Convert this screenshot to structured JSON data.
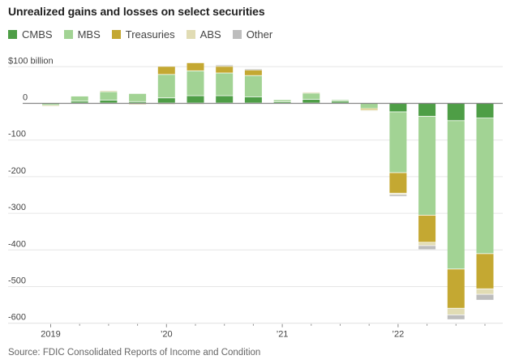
{
  "chart_data": {
    "type": "bar",
    "stacked": true,
    "title": "Unrealized gains and losses on select securities",
    "ylabel": "",
    "xlabel": "",
    "y_unit_label": "$100 billion",
    "ylim": [
      -600,
      100
    ],
    "yticks": [
      100,
      0,
      -100,
      -200,
      -300,
      -400,
      -500,
      -600
    ],
    "ytick_labels": [
      "$100 billion",
      "0",
      "-100",
      "-200",
      "-300",
      "-400",
      "-500",
      "-600"
    ],
    "x_tick_labels": [
      {
        "index": 0,
        "label": "2019"
      },
      {
        "index": 4,
        "label": "’20"
      },
      {
        "index": 8,
        "label": "’21"
      },
      {
        "index": 12,
        "label": "’22"
      }
    ],
    "categories": [
      "2019 Q1",
      "2019 Q2",
      "2019 Q3",
      "2019 Q4",
      "2020 Q1",
      "2020 Q2",
      "2020 Q3",
      "2020 Q4",
      "2021 Q1",
      "2021 Q2",
      "2021 Q3",
      "2021 Q4",
      "2022 Q1",
      "2022 Q2",
      "2022 Q3",
      "2022 Q4"
    ],
    "series": [
      {
        "name": "CMBS",
        "color": "#4e9e46",
        "values": [
          0,
          5,
          8,
          4,
          14,
          20,
          20,
          17,
          3,
          10,
          5,
          0,
          -24,
          -36,
          -48,
          -41
        ]
      },
      {
        "name": "MBS",
        "color": "#a2d394",
        "values": [
          -6,
          14,
          23,
          22,
          64,
          68,
          62,
          58,
          6,
          17,
          4,
          -15,
          -166,
          -270,
          -405,
          -370
        ]
      },
      {
        "name": "Treasuries",
        "color": "#c4a832",
        "values": [
          0,
          0,
          0,
          0,
          22,
          22,
          18,
          15,
          0,
          0,
          0,
          -3,
          -56,
          -74,
          -107,
          -96
        ]
      },
      {
        "name": "ABS",
        "color": "#e1dcb4",
        "values": [
          -3,
          0,
          3,
          -5,
          -4,
          -2,
          2,
          2,
          0,
          3,
          0,
          -1,
          -4,
          -9,
          -18,
          -15
        ]
      },
      {
        "name": "Other",
        "color": "#bdbdbd",
        "values": [
          0,
          0,
          0,
          0,
          0,
          0,
          2,
          1,
          0,
          0,
          0,
          0,
          -5,
          -11,
          -13,
          -16
        ]
      }
    ],
    "grid": true,
    "legend_position": "top-left",
    "source": "Source: FDIC Consolidated Reports of Income and Condition"
  }
}
